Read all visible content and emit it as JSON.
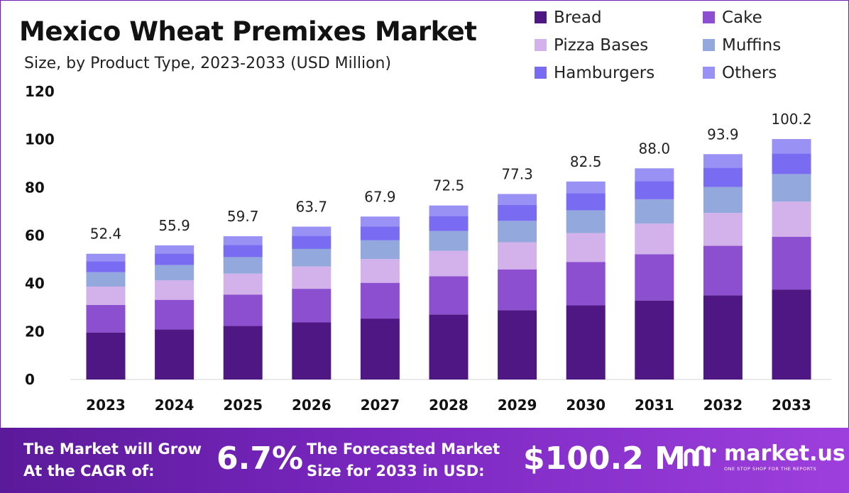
{
  "title": "Mexico Wheat Premixes Market",
  "subtitle": "Size, by Product Type, 2023-2033 (USD Million)",
  "chart_data": {
    "type": "bar",
    "stacked": true,
    "categories": [
      "2023",
      "2024",
      "2025",
      "2026",
      "2027",
      "2028",
      "2029",
      "2030",
      "2031",
      "2032",
      "2033"
    ],
    "totals": [
      52.4,
      55.9,
      59.7,
      63.7,
      67.9,
      72.5,
      77.3,
      82.5,
      88.0,
      93.9,
      100.2
    ],
    "total_labels": [
      "52.4",
      "55.9",
      "59.7",
      "63.7",
      "67.9",
      "72.5",
      "77.3",
      "82.5",
      "88.0",
      "93.9",
      "100.2"
    ],
    "ylim": [
      0,
      120
    ],
    "yticks": [
      0,
      20,
      40,
      60,
      80,
      100,
      120
    ],
    "series": [
      {
        "name": "Bread",
        "color": "#4e1784",
        "values": [
          19.6,
          20.9,
          22.3,
          23.8,
          25.4,
          27.1,
          28.9,
          30.9,
          32.9,
          35.1,
          37.5
        ]
      },
      {
        "name": "Cake",
        "color": "#8b4fcf",
        "values": [
          11.5,
          12.3,
          13.1,
          14.0,
          14.9,
          15.9,
          17.0,
          18.1,
          19.3,
          20.6,
          22.0
        ]
      },
      {
        "name": "Pizza Bases",
        "color": "#d3b2ec",
        "values": [
          7.6,
          8.1,
          8.7,
          9.3,
          9.9,
          10.6,
          11.3,
          12.0,
          12.8,
          13.7,
          14.6
        ]
      },
      {
        "name": "Muffins",
        "color": "#93a8dc",
        "values": [
          6.0,
          6.4,
          6.9,
          7.3,
          7.8,
          8.3,
          8.9,
          9.5,
          10.1,
          10.8,
          11.5
        ]
      },
      {
        "name": "Hamburgers",
        "color": "#7a6cf2",
        "values": [
          4.5,
          4.8,
          5.1,
          5.5,
          5.8,
          6.2,
          6.6,
          7.1,
          7.6,
          8.1,
          8.6
        ]
      },
      {
        "name": "Others",
        "color": "#9a91f5",
        "values": [
          3.2,
          3.4,
          3.6,
          3.8,
          4.1,
          4.4,
          4.6,
          4.9,
          5.3,
          5.6,
          6.0
        ]
      }
    ],
    "grid": false,
    "legend_position": "top-right"
  },
  "footer": {
    "cagr_line1": "The Market will Grow",
    "cagr_line2": "At the CAGR of:",
    "cagr_value": "6.7%",
    "forecast_line1": "The Forecasted Market",
    "forecast_line2": "Size for 2033 in USD:",
    "forecast_value": "$100.2 M",
    "brand_name": "market.us",
    "brand_tagline": "ONE STOP SHOP FOR THE REPORTS"
  }
}
